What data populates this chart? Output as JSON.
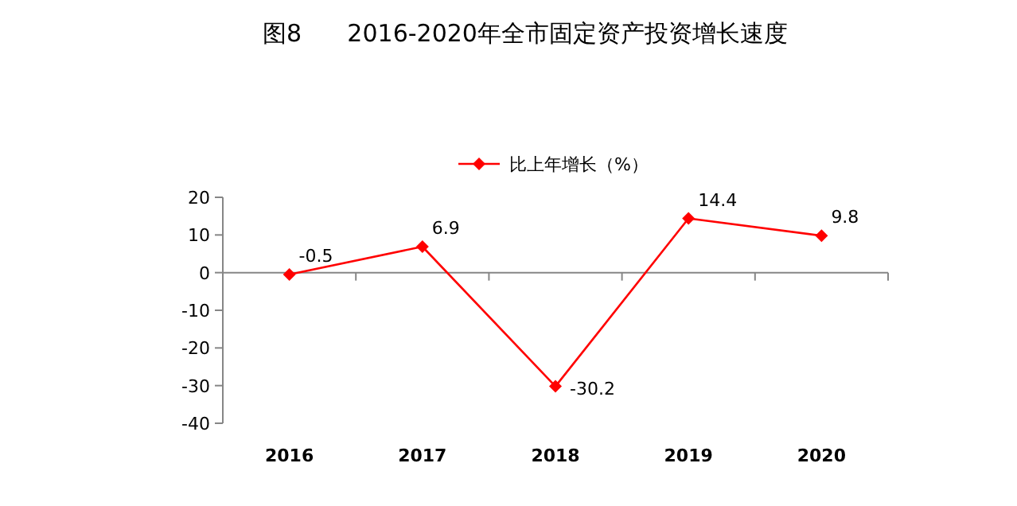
{
  "chart_data": {
    "type": "line",
    "title": "图8      2016-2020年全市固定资产投资增长速度",
    "categories": [
      "2016",
      "2017",
      "2018",
      "2019",
      "2020"
    ],
    "series": [
      {
        "name": "比上年增长（%）",
        "color": "#ff0000",
        "values": [
          -0.5,
          6.9,
          -30.2,
          14.4,
          9.8
        ]
      }
    ],
    "ylim": [
      -40,
      20
    ],
    "yticks": [
      -40,
      -30,
      -20,
      -10,
      0,
      10,
      20
    ],
    "legend": "top",
    "marker": "diamond",
    "line_style": "solid",
    "data_labels": true
  }
}
